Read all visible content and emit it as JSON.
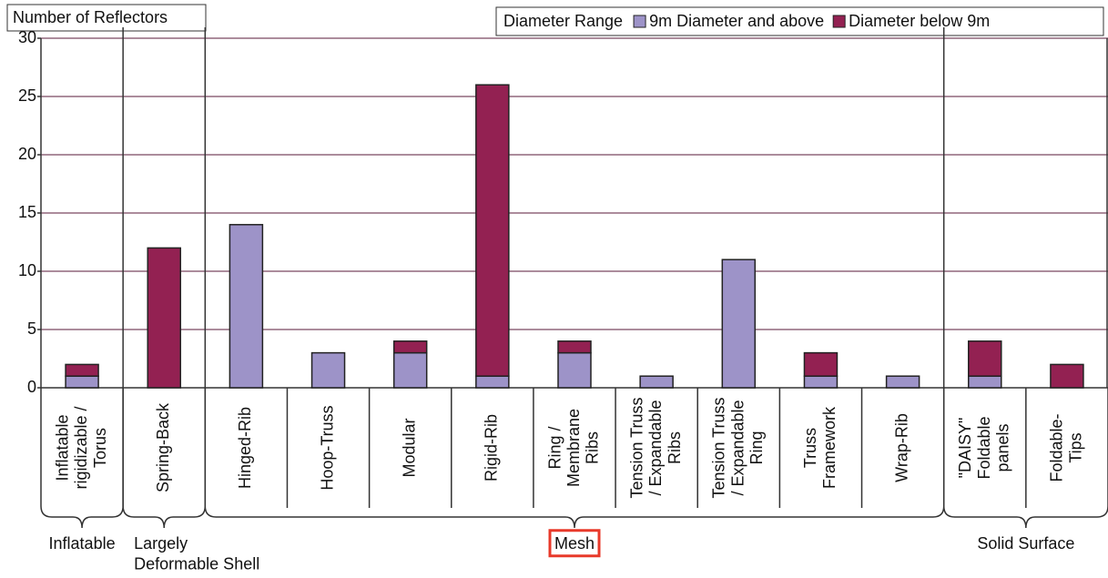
{
  "chart_data": {
    "type": "bar",
    "stacked": true,
    "y_label": "Number of Reflectors",
    "legend_title": "Diameter Range",
    "categories": [
      "Inflatable\nrigidizable /\nTorus",
      "Spring-Back",
      "Hinged-Rib",
      "Hoop-Truss",
      "Modular",
      "Rigid-Rib",
      "Ring /\nMembrane\nRibs",
      "Tension Truss\n/ Expandable\nRibs",
      "Tension Truss\n/ Expandable\nRing",
      "Truss\nFramework",
      "Wrap-Rib",
      "\"DAISY\"\nFoldable\npanels",
      "Foldable-\nTips"
    ],
    "series": [
      {
        "name": "9m Diameter and above",
        "color": "#9d93c8",
        "values": [
          1,
          0,
          14,
          3,
          3,
          1,
          3,
          1,
          11,
          1,
          1,
          1,
          0
        ]
      },
      {
        "name": "Diameter below 9m",
        "color": "#932152",
        "values": [
          1,
          12,
          0,
          0,
          1,
          25,
          1,
          0,
          0,
          2,
          0,
          3,
          2
        ]
      }
    ],
    "groups": [
      {
        "label": "Inflatable",
        "size": 1
      },
      {
        "label": "Largely\nDeformable Shell",
        "size": 1
      },
      {
        "label": "Mesh",
        "size": 9,
        "highlight": "#e8392a"
      },
      {
        "label": "Solid Surface",
        "size": 2
      }
    ],
    "ylim": [
      0,
      30
    ],
    "yticks": [
      0,
      5,
      10,
      15,
      20,
      25,
      30
    ],
    "grid": true
  }
}
